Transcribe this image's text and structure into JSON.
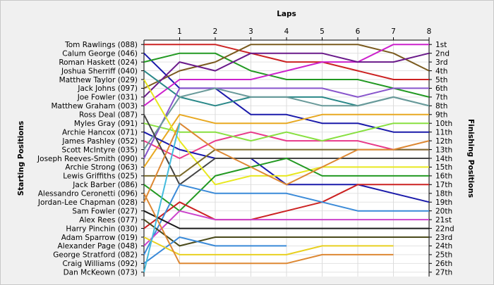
{
  "chart_data": {
    "type": "line",
    "subtype": "lap-position-chart",
    "title": "Laps",
    "ylabel_left": "Starting Positions",
    "ylabel_right": "Finishing Positions",
    "laps": [
      1,
      2,
      3,
      4,
      5,
      6,
      7,
      8
    ],
    "grid": true,
    "finishing_positions": [
      "1st",
      "2nd",
      "3rd",
      "4th",
      "5th",
      "6th",
      "7th",
      "8th",
      "9th",
      "10th",
      "11th",
      "12th",
      "13th",
      "14th",
      "15th",
      "16th",
      "17th",
      "18th",
      "19th",
      "20th",
      "21st",
      "22nd",
      "23rd",
      "24th",
      "25th",
      "26th",
      "27th"
    ],
    "series": [
      {
        "name": "Tom Rawlings (088)",
        "color": "#cc2222",
        "positions": [
          1,
          1,
          1,
          2,
          3,
          3,
          4,
          5,
          5
        ]
      },
      {
        "name": "Calum George (046)",
        "color": "#1a1aaa",
        "positions": [
          2,
          6,
          6,
          9,
          9,
          10,
          10,
          11,
          11
        ]
      },
      {
        "name": "Roman Haskett (024)",
        "color": "#229922",
        "positions": [
          3,
          2,
          2,
          4,
          5,
          5,
          5,
          6,
          7
        ]
      },
      {
        "name": "Joshua Sherriff (040)",
        "color": "#7a5a1e",
        "positions": [
          6,
          4,
          3,
          1,
          1,
          1,
          1,
          2,
          4
        ]
      },
      {
        "name": "Matthew Taylor (029)",
        "color": "#cc22cc",
        "positions": [
          8,
          5,
          5,
          5,
          4,
          3,
          3,
          1,
          1
        ]
      },
      {
        "name": "Jack Johns (097)",
        "color": "#e8a820",
        "positions": [
          15,
          9,
          10,
          10,
          10,
          9,
          9,
          9,
          9
        ]
      },
      {
        "name": "Joe Fowler (031)",
        "color": "#6a1a8a",
        "positions": [
          7,
          3,
          4,
          2,
          2,
          2,
          3,
          3,
          2
        ]
      },
      {
        "name": "Matthew Graham (003)",
        "color": "#2a8888",
        "positions": [
          4,
          7,
          8,
          7,
          7,
          7,
          8,
          7,
          8
        ]
      },
      {
        "name": "Ross Deal (087)",
        "color": "#e83a8a",
        "positions": [
          12,
          14,
          12,
          11,
          12,
          12,
          12,
          13,
          13
        ]
      },
      {
        "name": "Myles Gray (091)",
        "color": "#88e040",
        "positions": [
          10,
          11,
          11,
          12,
          11,
          12,
          11,
          10,
          10
        ]
      },
      {
        "name": "Archie Hancox (071)",
        "color": "#1a1aaa",
        "positions": [
          11,
          13,
          14,
          14,
          17,
          17,
          17,
          18,
          19
        ]
      },
      {
        "name": "James Pashley (052)",
        "color": "#8855cc",
        "positions": [
          14,
          6,
          6,
          6,
          6,
          6,
          7,
          6,
          6
        ]
      },
      {
        "name": "Scott McIntyre (035)",
        "color": "#6a9a9a",
        "positions": [
          13,
          7,
          6,
          7,
          7,
          8,
          8,
          7,
          8
        ]
      },
      {
        "name": "Joseph Reeves-Smith (090)",
        "color": "#444444",
        "positions": [
          9,
          17,
          14,
          14,
          14,
          14,
          14,
          14,
          14
        ]
      },
      {
        "name": "Archie Strong (063)",
        "color": "#e8e820",
        "positions": [
          5,
          12,
          17,
          16,
          16,
          15,
          15,
          15,
          15
        ]
      },
      {
        "name": "Lewis Griffiths (025)",
        "color": "#7a6a2a",
        "positions": [
          16,
          16,
          13,
          13,
          13,
          13,
          13,
          13,
          13
        ]
      },
      {
        "name": "Jack Barber (086)",
        "color": "#229922",
        "positions": [
          17,
          20,
          16,
          15,
          14,
          16,
          16,
          16,
          16
        ]
      },
      {
        "name": "Alessandro Ceronetti (096)",
        "color": "#dd8833",
        "positions": [
          19,
          10,
          13,
          15,
          17,
          15,
          13,
          13,
          12
        ]
      },
      {
        "name": "Jordan-Lee Chapman (028)",
        "color": "#cc2222",
        "positions": [
          22,
          19,
          21,
          21,
          20,
          19,
          17,
          17,
          17
        ]
      },
      {
        "name": "Sam Fowler (027)",
        "color": "#3a8ad8",
        "positions": [
          25,
          17,
          18,
          18,
          18,
          19,
          20,
          20,
          20
        ]
      },
      {
        "name": "Alex Rees (077)",
        "color": "#cc44cc",
        "positions": [
          24,
          20,
          21,
          21,
          21,
          21,
          21,
          21,
          21
        ]
      },
      {
        "name": "Harry Pinchin (030)",
        "color": "#1a1a1a",
        "positions": [
          20,
          22,
          22,
          22,
          22,
          22,
          22,
          22,
          22
        ]
      },
      {
        "name": "Adam Sparrow (019)",
        "color": "#4a4a1a",
        "positions": [
          21,
          24,
          23,
          23,
          23,
          23,
          23,
          23,
          23
        ]
      },
      {
        "name": "Alexander Page (048)",
        "color": "#3a8ad8",
        "positions": [
          26,
          23,
          24,
          24,
          24
        ]
      },
      {
        "name": "George Stratford (082)",
        "color": "#e8d020",
        "positions": [
          23,
          25,
          25,
          25,
          25,
          24,
          24,
          24
        ]
      },
      {
        "name": "Craig Williams (092)",
        "color": "#dd8833",
        "positions": [
          18,
          26,
          26,
          26,
          26,
          25,
          25,
          25
        ]
      },
      {
        "name": "Dan McKeown (073)",
        "color": "#44bbdd",
        "positions": [
          27,
          10
        ]
      }
    ]
  }
}
